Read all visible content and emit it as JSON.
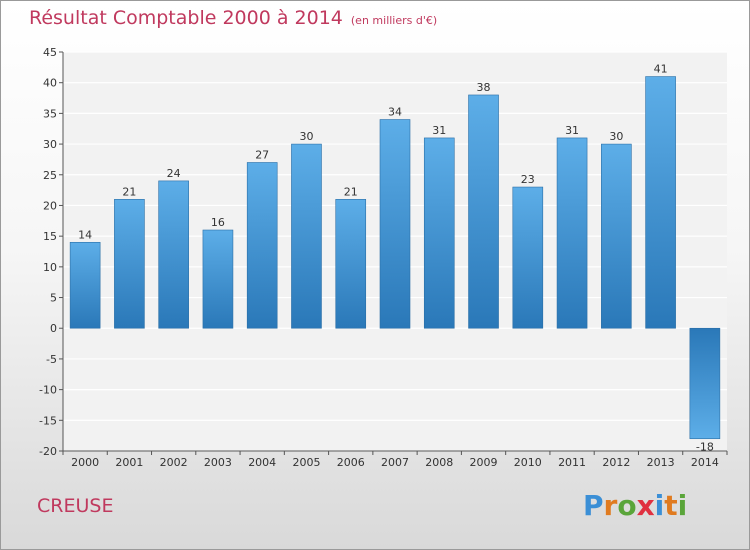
{
  "header": {
    "title": "Résultat Comptable 2000 à 2014",
    "subtitle": "(en milliers d'€)"
  },
  "footer": {
    "region": "CREUSE",
    "logo": "Proxiti",
    "logo_colors": [
      "#3b8fd6",
      "#e07b20",
      "#5aa53a",
      "#e03040",
      "#3b8fd6",
      "#e07b20",
      "#5aa53a"
    ]
  },
  "colors": {
    "title": "#c0395e",
    "bar_light": "#5daee8",
    "bar_dark": "#2a78b8",
    "plot_bg": "#f2f2f2",
    "grid": "#ffffff"
  },
  "chart_data": {
    "type": "bar",
    "title": "Résultat Comptable 2000 à 2014",
    "subtitle": "(en milliers d'€)",
    "xlabel": "",
    "ylabel": "",
    "categories": [
      "2000",
      "2001",
      "2002",
      "2003",
      "2004",
      "2005",
      "2006",
      "2007",
      "2008",
      "2009",
      "2010",
      "2011",
      "2012",
      "2013",
      "2014"
    ],
    "values": [
      14,
      21,
      24,
      16,
      27,
      30,
      21,
      34,
      31,
      38,
      23,
      31,
      30,
      41,
      -18
    ],
    "value_labels": [
      "14",
      "21",
      "24",
      "16",
      "27",
      "30",
      "21",
      "34",
      "31",
      "38",
      "23",
      "31",
      "30",
      "41",
      "-18"
    ],
    "ylim": [
      -20,
      45
    ],
    "yticks": [
      -20,
      -15,
      -10,
      -5,
      0,
      5,
      10,
      15,
      20,
      25,
      30,
      35,
      40,
      45
    ],
    "grid": true,
    "legend": "none"
  }
}
